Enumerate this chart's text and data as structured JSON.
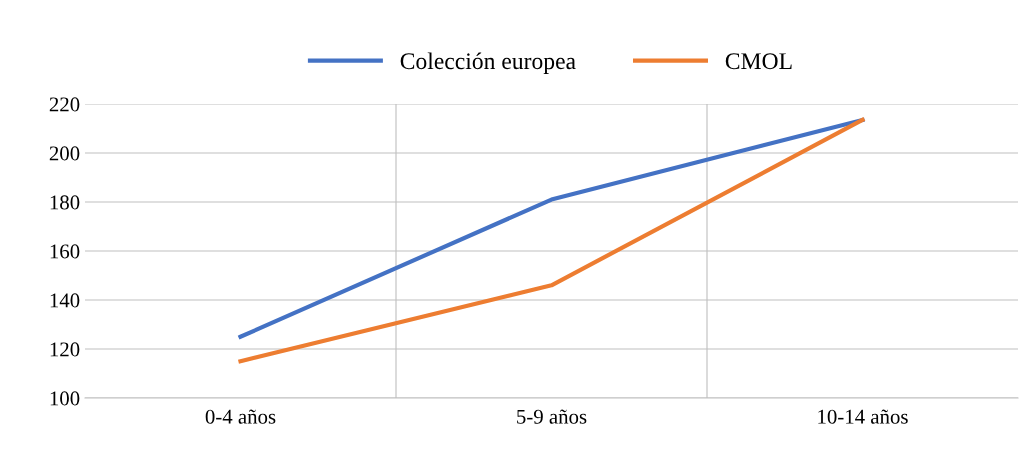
{
  "chart_data": {
    "type": "line",
    "categories": [
      "0-4 años",
      "5-9 años",
      "10-14 años"
    ],
    "series": [
      {
        "name": "Colección europea",
        "color": "#4472c4",
        "values": [
          125,
          181,
          213.5
        ]
      },
      {
        "name": "CMOL",
        "color": "#ed7d31",
        "values": [
          115,
          146,
          213.5
        ]
      }
    ],
    "ylim": [
      100,
      220
    ],
    "yticks": [
      100,
      120,
      140,
      160,
      180,
      200,
      220
    ],
    "grid": true,
    "legend": "top",
    "marker": "none",
    "line_style": "solid"
  }
}
